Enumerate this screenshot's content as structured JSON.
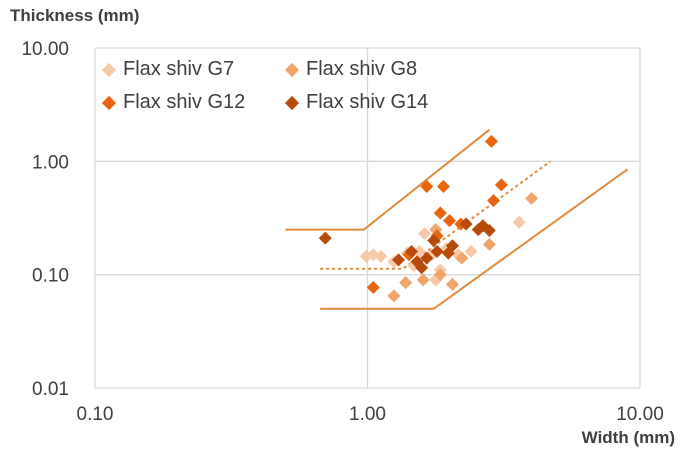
{
  "chart_data": {
    "type": "scatter",
    "title": "",
    "ylabel": "Thickness (mm)",
    "xlabel": "Width (mm)",
    "x_scale": "log",
    "y_scale": "log",
    "xlim": [
      0.1,
      10
    ],
    "ylim": [
      0.01,
      10
    ],
    "x_ticks": [
      "0.10",
      "1.00",
      "10.00"
    ],
    "y_ticks": [
      "0.01",
      "0.10",
      "1.00",
      "10.00"
    ],
    "grid": true,
    "legend_position": "top-left",
    "series": [
      {
        "name": "Flax shiv G7",
        "color": "#f8c9a8",
        "points": [
          [
            0.99,
            0.145
          ],
          [
            1.05,
            0.15
          ],
          [
            1.12,
            0.145
          ],
          [
            1.25,
            0.13
          ],
          [
            1.4,
            0.155
          ],
          [
            1.48,
            0.12
          ],
          [
            1.55,
            0.16
          ],
          [
            1.62,
            0.23
          ],
          [
            1.72,
            0.15
          ],
          [
            1.78,
            0.09
          ],
          [
            1.85,
            0.11
          ],
          [
            1.95,
            0.17
          ],
          [
            2.15,
            0.15
          ],
          [
            2.4,
            0.16
          ],
          [
            3.6,
            0.29
          ]
        ]
      },
      {
        "name": "Flax shiv G8",
        "color": "#f0a56c",
        "points": [
          [
            1.25,
            0.065
          ],
          [
            1.38,
            0.085
          ],
          [
            1.6,
            0.09
          ],
          [
            1.78,
            0.25
          ],
          [
            1.85,
            0.1
          ],
          [
            2.05,
            0.082
          ],
          [
            2.22,
            0.14
          ],
          [
            2.8,
            0.185
          ],
          [
            4.0,
            0.47
          ]
        ]
      },
      {
        "name": "Flax shiv G12",
        "color": "#e8640f",
        "points": [
          [
            1.05,
            0.077
          ],
          [
            1.42,
            0.15
          ],
          [
            1.65,
            0.6
          ],
          [
            1.8,
            0.22
          ],
          [
            1.85,
            0.35
          ],
          [
            1.9,
            0.6
          ],
          [
            2.0,
            0.3
          ],
          [
            2.2,
            0.28
          ],
          [
            2.85,
            1.5
          ],
          [
            2.9,
            0.45
          ],
          [
            3.1,
            0.62
          ]
        ]
      },
      {
        "name": "Flax shiv G14",
        "color": "#b84a0c",
        "points": [
          [
            0.7,
            0.21
          ],
          [
            1.3,
            0.135
          ],
          [
            1.45,
            0.16
          ],
          [
            1.52,
            0.13
          ],
          [
            1.58,
            0.115
          ],
          [
            1.65,
            0.14
          ],
          [
            1.75,
            0.2
          ],
          [
            1.8,
            0.16
          ],
          [
            1.98,
            0.155
          ],
          [
            2.05,
            0.18
          ],
          [
            2.3,
            0.28
          ],
          [
            2.55,
            0.25
          ],
          [
            2.65,
            0.27
          ],
          [
            2.8,
            0.245
          ]
        ]
      }
    ],
    "lines": [
      {
        "style": "solid",
        "color": "#e08a3c",
        "points": [
          [
            0.5,
            0.25
          ],
          [
            0.97,
            0.25
          ],
          [
            2.8,
            1.9
          ]
        ]
      },
      {
        "style": "solid",
        "color": "#e08a3c",
        "points": [
          [
            0.67,
            0.05
          ],
          [
            1.75,
            0.05
          ],
          [
            9.0,
            0.85
          ]
        ]
      },
      {
        "style": "dotted",
        "color": "#e08a3c",
        "points": [
          [
            0.67,
            0.113
          ],
          [
            1.35,
            0.113
          ],
          [
            4.7,
            1.0
          ]
        ]
      }
    ]
  }
}
